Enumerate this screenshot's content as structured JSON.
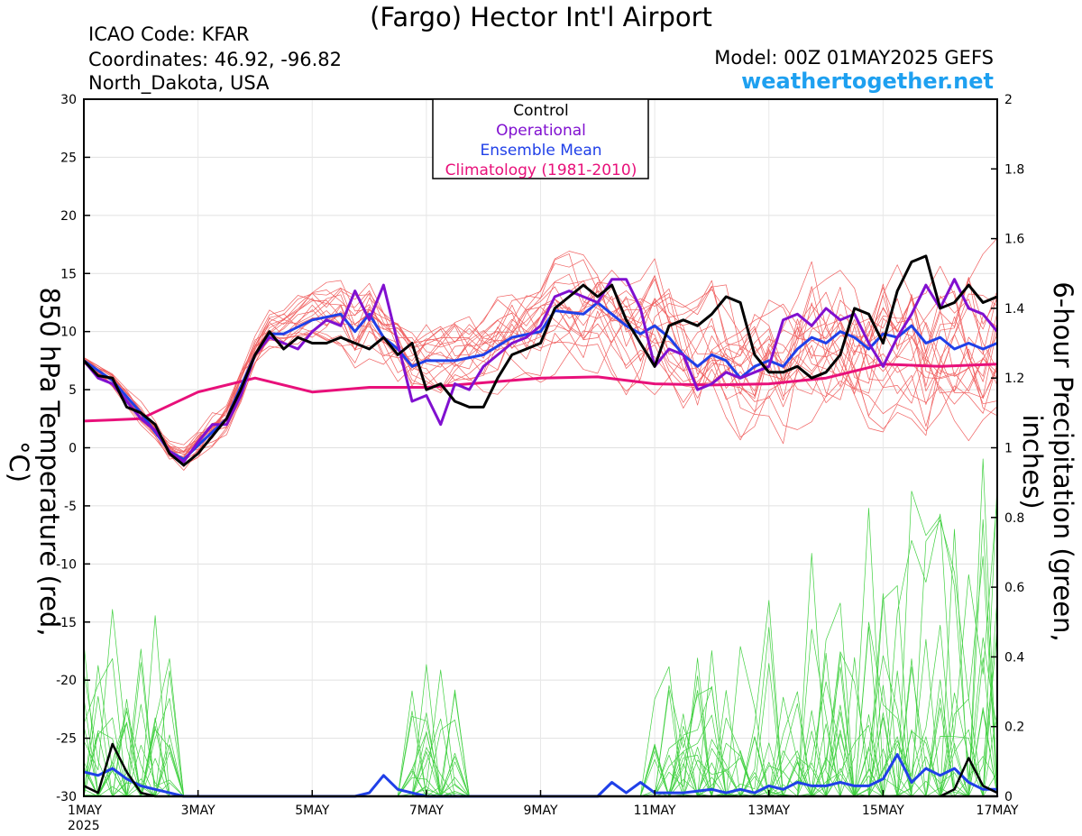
{
  "header": {
    "title": "(Fargo) Hector Int'l Airport",
    "icao": "ICAO Code: KFAR",
    "coordinates": "Coordinates: 46.92, -96.82",
    "region": "North_Dakota, USA",
    "model": "Model: 00Z 01MAY2025 GEFS",
    "site": "weathertogether.net"
  },
  "colors": {
    "control": "#000000",
    "operational": "#8010d0",
    "mean": "#2040e8",
    "climatology": "#e8107a",
    "members_temp": "#f06060",
    "members_precip": "#40d040",
    "site": "#1ea0f0"
  },
  "chart_data": {
    "type": "line",
    "xlabel": "",
    "ylabel": "850 hPa Temperature (red, °C)",
    "y2label": "6-hour Precipitation (green, inches)",
    "x_ticks": [
      "1MAY",
      "3MAY",
      "5MAY",
      "7MAY",
      "9MAY",
      "11MAY",
      "13MAY",
      "15MAY",
      "17MAY"
    ],
    "x_year": "2025",
    "xlim_days": [
      0,
      16
    ],
    "ylim": [
      -30,
      30
    ],
    "y_ticks": [
      "30",
      "25",
      "20",
      "15",
      "10",
      "5",
      "0",
      "-5",
      "-10",
      "-15",
      "-20",
      "-25",
      "-30"
    ],
    "y2lim": [
      0,
      2
    ],
    "y2_ticks": [
      "2",
      "1.8",
      "1.6",
      "1.4",
      "1.2",
      "1",
      "0.8",
      "0.6",
      "0.4",
      "0.2",
      "0"
    ],
    "legend": {
      "placement": "top-center",
      "entries": [
        "Control",
        "Operational",
        "Ensemble Mean",
        "Climatology (1981-2010)"
      ]
    },
    "series_temp": {
      "control": [
        [
          0,
          7.5
        ],
        [
          0.25,
          6.2
        ],
        [
          0.5,
          6.0
        ],
        [
          0.75,
          3.5
        ],
        [
          1,
          3.0
        ],
        [
          1.25,
          2.0
        ],
        [
          1.5,
          -0.5
        ],
        [
          1.75,
          -1.5
        ],
        [
          2,
          -0.5
        ],
        [
          2.25,
          1.0
        ],
        [
          2.5,
          2.5
        ],
        [
          2.75,
          5.0
        ],
        [
          3,
          8.0
        ],
        [
          3.25,
          10.0
        ],
        [
          3.5,
          8.5
        ],
        [
          3.75,
          9.5
        ],
        [
          4,
          9.0
        ],
        [
          4.25,
          9.0
        ],
        [
          4.5,
          9.5
        ],
        [
          4.75,
          9.0
        ],
        [
          5,
          8.5
        ],
        [
          5.25,
          9.5
        ],
        [
          5.5,
          8.0
        ],
        [
          5.75,
          9.0
        ],
        [
          6,
          5.0
        ],
        [
          6.25,
          5.5
        ],
        [
          6.5,
          4.0
        ],
        [
          6.75,
          3.5
        ],
        [
          7,
          3.5
        ],
        [
          7.25,
          6.0
        ],
        [
          7.5,
          8.0
        ],
        [
          7.75,
          8.5
        ],
        [
          8,
          9.0
        ],
        [
          8.25,
          12.0
        ],
        [
          8.5,
          13.0
        ],
        [
          8.75,
          14.0
        ],
        [
          9,
          13.0
        ],
        [
          9.25,
          14.0
        ],
        [
          9.5,
          11.0
        ],
        [
          9.75,
          9.0
        ],
        [
          10,
          7.0
        ],
        [
          10.25,
          10.5
        ],
        [
          10.5,
          11.0
        ],
        [
          10.75,
          10.5
        ],
        [
          11,
          11.5
        ],
        [
          11.25,
          13.0
        ],
        [
          11.5,
          12.5
        ],
        [
          11.75,
          8.0
        ],
        [
          12,
          6.5
        ],
        [
          12.25,
          6.5
        ],
        [
          12.5,
          7.0
        ],
        [
          12.75,
          6.0
        ],
        [
          13,
          6.5
        ],
        [
          13.25,
          8.0
        ],
        [
          13.5,
          12.0
        ],
        [
          13.75,
          11.5
        ],
        [
          14,
          9.0
        ],
        [
          14.25,
          13.5
        ],
        [
          14.5,
          16.0
        ],
        [
          14.75,
          16.5
        ],
        [
          15,
          12.0
        ],
        [
          15.25,
          12.5
        ],
        [
          15.5,
          14.0
        ],
        [
          15.75,
          12.5
        ],
        [
          16,
          13.0
        ]
      ],
      "operational": [
        [
          0,
          7.5
        ],
        [
          0.25,
          6.0
        ],
        [
          0.5,
          5.5
        ],
        [
          0.75,
          4.0
        ],
        [
          1,
          2.5
        ],
        [
          1.25,
          1.5
        ],
        [
          1.5,
          -0.3
        ],
        [
          1.75,
          -1.2
        ],
        [
          2,
          0.5
        ],
        [
          2.25,
          2.0
        ],
        [
          2.5,
          2.0
        ],
        [
          2.75,
          4.5
        ],
        [
          3,
          8.0
        ],
        [
          3.25,
          9.5
        ],
        [
          3.5,
          9.0
        ],
        [
          3.75,
          8.5
        ],
        [
          4,
          10.0
        ],
        [
          4.25,
          11.0
        ],
        [
          4.5,
          10.5
        ],
        [
          4.75,
          13.5
        ],
        [
          5,
          11.0
        ],
        [
          5.25,
          14.0
        ],
        [
          5.5,
          9.0
        ],
        [
          5.75,
          4.0
        ],
        [
          6,
          4.5
        ],
        [
          6.25,
          2.0
        ],
        [
          6.5,
          5.5
        ],
        [
          6.75,
          5.0
        ],
        [
          7,
          7.0
        ],
        [
          7.25,
          8.0
        ],
        [
          7.5,
          9.0
        ],
        [
          7.75,
          9.5
        ],
        [
          8,
          10.5
        ],
        [
          8.25,
          13.0
        ],
        [
          8.5,
          13.5
        ],
        [
          8.75,
          13.0
        ],
        [
          9,
          12.5
        ],
        [
          9.25,
          14.5
        ],
        [
          9.5,
          14.5
        ],
        [
          9.75,
          12.0
        ],
        [
          10,
          7.0
        ],
        [
          10.25,
          8.5
        ],
        [
          10.5,
          8.0
        ],
        [
          10.75,
          5.0
        ],
        [
          11,
          5.5
        ],
        [
          11.25,
          6.5
        ],
        [
          11.5,
          6.0
        ],
        [
          11.75,
          6.5
        ],
        [
          12,
          7.0
        ],
        [
          12.25,
          11.0
        ],
        [
          12.5,
          11.5
        ],
        [
          12.75,
          10.5
        ],
        [
          13,
          12.0
        ],
        [
          13.25,
          11.0
        ],
        [
          13.5,
          11.5
        ],
        [
          13.75,
          9.0
        ],
        [
          14,
          7.0
        ],
        [
          14.25,
          9.5
        ],
        [
          14.5,
          11.5
        ],
        [
          14.75,
          14.0
        ],
        [
          15,
          12.0
        ],
        [
          15.25,
          14.5
        ],
        [
          15.5,
          12.0
        ],
        [
          15.75,
          11.5
        ],
        [
          16,
          10.0
        ]
      ],
      "mean": [
        [
          0,
          7.5
        ],
        [
          0.5,
          5.8
        ],
        [
          1,
          3.0
        ],
        [
          1.5,
          -0.3
        ],
        [
          1.75,
          -1.0
        ],
        [
          2,
          0.2
        ],
        [
          2.5,
          2.5
        ],
        [
          3,
          8.0
        ],
        [
          3.25,
          9.8
        ],
        [
          3.5,
          9.8
        ],
        [
          4,
          11.0
        ],
        [
          4.5,
          11.5
        ],
        [
          4.75,
          10.0
        ],
        [
          5,
          11.5
        ],
        [
          5.25,
          9.5
        ],
        [
          5.5,
          8.5
        ],
        [
          5.75,
          7.0
        ],
        [
          6,
          7.5
        ],
        [
          6.5,
          7.5
        ],
        [
          7,
          8.0
        ],
        [
          7.5,
          9.5
        ],
        [
          8,
          10.0
        ],
        [
          8.25,
          11.8
        ],
        [
          8.75,
          11.5
        ],
        [
          9,
          12.5
        ],
        [
          9.25,
          11.5
        ],
        [
          9.5,
          10.5
        ],
        [
          9.75,
          9.8
        ],
        [
          10,
          10.5
        ],
        [
          10.25,
          9.5
        ],
        [
          10.5,
          8.0
        ],
        [
          10.75,
          7.0
        ],
        [
          11,
          8.0
        ],
        [
          11.25,
          7.5
        ],
        [
          11.5,
          6.0
        ],
        [
          11.75,
          7.0
        ],
        [
          12,
          7.5
        ],
        [
          12.25,
          7.0
        ],
        [
          12.5,
          8.5
        ],
        [
          12.75,
          9.5
        ],
        [
          13,
          9.0
        ],
        [
          13.25,
          10.0
        ],
        [
          13.5,
          9.5
        ],
        [
          13.75,
          8.5
        ],
        [
          14,
          9.8
        ],
        [
          14.25,
          9.5
        ],
        [
          14.5,
          10.5
        ],
        [
          14.75,
          9.0
        ],
        [
          15,
          9.5
        ],
        [
          15.25,
          8.5
        ],
        [
          15.5,
          9.0
        ],
        [
          15.75,
          8.5
        ],
        [
          16,
          9.0
        ]
      ],
      "climatology": [
        [
          0,
          2.3
        ],
        [
          1,
          2.5
        ],
        [
          2,
          4.8
        ],
        [
          3,
          6.0
        ],
        [
          4,
          4.8
        ],
        [
          5,
          5.2
        ],
        [
          6,
          5.2
        ],
        [
          7,
          5.6
        ],
        [
          8,
          6.0
        ],
        [
          9,
          6.1
        ],
        [
          10,
          5.5
        ],
        [
          11,
          5.4
        ],
        [
          12,
          5.5
        ],
        [
          13,
          6.0
        ],
        [
          14,
          7.2
        ],
        [
          15,
          7.0
        ],
        [
          16,
          7.2
        ]
      ]
    },
    "series_precip": {
      "control": [
        [
          0,
          0.03
        ],
        [
          0.25,
          0.01
        ],
        [
          0.5,
          0.15
        ],
        [
          0.75,
          0.07
        ],
        [
          1,
          0.01
        ],
        [
          1.25,
          0
        ],
        [
          16,
          0
        ],
        [
          15,
          0
        ],
        [
          15.25,
          0.02
        ],
        [
          15.5,
          0.11
        ],
        [
          15.75,
          0.03
        ],
        [
          16,
          0.01
        ]
      ],
      "mean": [
        [
          0,
          0.07
        ],
        [
          0.25,
          0.06
        ],
        [
          0.5,
          0.08
        ],
        [
          0.75,
          0.05
        ],
        [
          1,
          0.03
        ],
        [
          1.25,
          0.02
        ],
        [
          1.5,
          0.01
        ],
        [
          1.75,
          0
        ],
        [
          4.75,
          0
        ],
        [
          5,
          0.01
        ],
        [
          5.25,
          0.06
        ],
        [
          5.5,
          0.02
        ],
        [
          6,
          0
        ],
        [
          9,
          0
        ],
        [
          9.25,
          0.04
        ],
        [
          9.5,
          0.01
        ],
        [
          9.75,
          0.04
        ],
        [
          10,
          0.01
        ],
        [
          10.5,
          0.01
        ],
        [
          11,
          0.02
        ],
        [
          11.25,
          0.01
        ],
        [
          11.5,
          0.02
        ],
        [
          11.75,
          0.01
        ],
        [
          12,
          0.03
        ],
        [
          12.25,
          0.02
        ],
        [
          12.5,
          0.04
        ],
        [
          12.75,
          0.03
        ],
        [
          13,
          0.03
        ],
        [
          13.25,
          0.04
        ],
        [
          13.5,
          0.03
        ],
        [
          13.75,
          0.03
        ],
        [
          14,
          0.05
        ],
        [
          14.25,
          0.12
        ],
        [
          14.5,
          0.04
        ],
        [
          14.75,
          0.08
        ],
        [
          15,
          0.06
        ],
        [
          15.25,
          0.08
        ],
        [
          15.5,
          0.04
        ],
        [
          15.75,
          0.02
        ],
        [
          16,
          0.02
        ]
      ]
    }
  }
}
